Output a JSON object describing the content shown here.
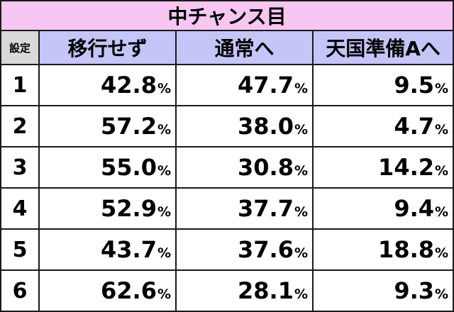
{
  "title": "中チャンス目",
  "headers": {
    "setting": "設定",
    "col1": "移行せず",
    "col2": "通常へ",
    "col3": "天国準備Aへ"
  },
  "unit": "%",
  "rows": [
    {
      "setting": "1",
      "v1": "42.8",
      "v2": "47.7",
      "v3": "9.5"
    },
    {
      "setting": "2",
      "v1": "57.2",
      "v2": "38.0",
      "v3": "4.7"
    },
    {
      "setting": "3",
      "v1": "55.0",
      "v2": "30.8",
      "v3": "14.2"
    },
    {
      "setting": "4",
      "v1": "52.9",
      "v2": "37.7",
      "v3": "9.4"
    },
    {
      "setting": "5",
      "v1": "43.7",
      "v2": "37.6",
      "v3": "18.8"
    },
    {
      "setting": "6",
      "v1": "62.6",
      "v2": "28.1",
      "v3": "9.3"
    }
  ],
  "colors": {
    "title_bg": "#f7c6f2",
    "header_bg": "#c4c6f7",
    "setting_header_bg": "#d9d9d9",
    "border": "#1a1a1a"
  }
}
